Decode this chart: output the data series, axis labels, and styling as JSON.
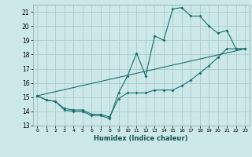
{
  "title": "",
  "xlabel": "Humidex (Indice chaleur)",
  "bg_color": "#cce8e8",
  "grid_color": "#aacccc",
  "line_color": "#1a7070",
  "xlim": [
    -0.5,
    23.5
  ],
  "ylim": [
    13,
    21.5
  ],
  "yticks": [
    13,
    14,
    15,
    16,
    17,
    18,
    19,
    20,
    21
  ],
  "xticks": [
    0,
    1,
    2,
    3,
    4,
    5,
    6,
    7,
    8,
    9,
    10,
    11,
    12,
    13,
    14,
    15,
    16,
    17,
    18,
    19,
    20,
    21,
    22,
    23
  ],
  "line1_x": [
    0,
    1,
    2,
    3,
    4,
    5,
    6,
    7,
    8,
    9,
    10,
    11,
    12,
    13,
    14,
    15,
    16,
    17,
    18,
    19,
    20,
    21,
    22,
    23
  ],
  "line1_y": [
    15.1,
    14.8,
    14.7,
    14.1,
    14.0,
    14.0,
    13.7,
    13.7,
    13.5,
    15.3,
    16.5,
    18.1,
    16.5,
    19.3,
    19.0,
    21.2,
    21.3,
    20.7,
    20.7,
    20.0,
    19.5,
    19.7,
    18.4,
    18.4
  ],
  "line2_x": [
    0,
    1,
    2,
    3,
    4,
    5,
    6,
    7,
    8,
    9,
    10,
    11,
    12,
    13,
    14,
    15,
    16,
    17,
    18,
    19,
    20,
    21,
    22,
    23
  ],
  "line2_y": [
    15.1,
    14.8,
    14.7,
    14.2,
    14.1,
    14.1,
    13.8,
    13.8,
    13.6,
    14.9,
    15.3,
    15.3,
    15.3,
    15.5,
    15.5,
    15.5,
    15.8,
    16.2,
    16.7,
    17.2,
    17.8,
    18.4,
    18.4,
    18.4
  ],
  "line3_x": [
    0,
    23
  ],
  "line3_y": [
    15.1,
    18.4
  ]
}
